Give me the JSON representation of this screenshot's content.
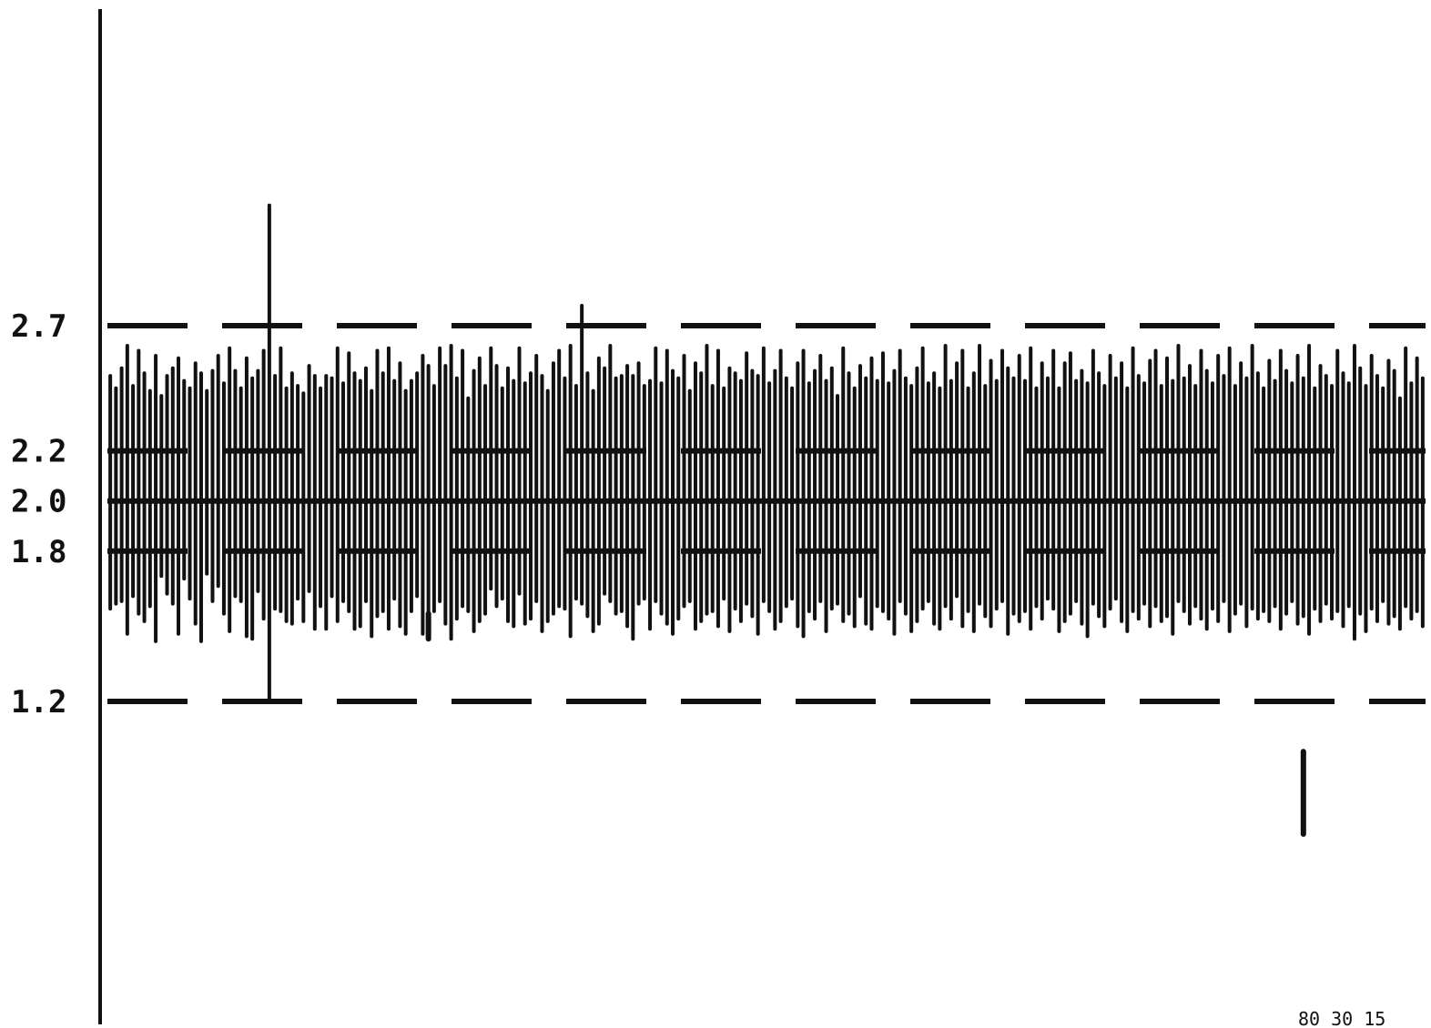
{
  "chart_data": {
    "type": "bar",
    "title": "",
    "xlabel": "",
    "ylabel": "",
    "ylim": [
      0.4,
      3.7
    ],
    "y_ticks": [
      {
        "value": 2.7,
        "label": "2.7"
      },
      {
        "value": 2.2,
        "label": "2.2"
      },
      {
        "value": 2.0,
        "label": "2.0"
      },
      {
        "value": 1.8,
        "label": "1.8"
      },
      {
        "value": 1.2,
        "label": "1.2"
      }
    ],
    "center_line": 2.0,
    "warning_limits": [
      1.8,
      2.2
    ],
    "control_limits": [
      1.2,
      2.7
    ],
    "bar_style": "vertical-range",
    "ink_color": "#111111",
    "ranges": [
      [
        1.57,
        2.5
      ],
      [
        1.59,
        2.45
      ],
      [
        1.6,
        2.53
      ],
      [
        1.47,
        2.62
      ],
      [
        1.62,
        2.46
      ],
      [
        1.55,
        2.6
      ],
      [
        1.52,
        2.51
      ],
      [
        1.58,
        2.44
      ],
      [
        1.44,
        2.58
      ],
      [
        1.7,
        2.42
      ],
      [
        1.63,
        2.5
      ],
      [
        1.59,
        2.53
      ],
      [
        1.47,
        2.57
      ],
      [
        1.69,
        2.48
      ],
      [
        1.61,
        2.45
      ],
      [
        1.51,
        2.55
      ],
      [
        1.44,
        2.51
      ],
      [
        1.71,
        2.44
      ],
      [
        1.6,
        2.52
      ],
      [
        1.66,
        2.58
      ],
      [
        1.55,
        2.47
      ],
      [
        1.48,
        2.61
      ],
      [
        1.62,
        2.52
      ],
      [
        1.6,
        2.45
      ],
      [
        1.46,
        2.57
      ],
      [
        1.45,
        2.49
      ],
      [
        1.64,
        2.52
      ],
      [
        1.53,
        2.6
      ],
      [
        1.2,
        3.18
      ],
      [
        1.57,
        2.5
      ],
      [
        1.56,
        2.61
      ],
      [
        1.52,
        2.45
      ],
      [
        1.51,
        2.51
      ],
      [
        1.61,
        2.46
      ],
      [
        1.52,
        2.43
      ],
      [
        1.64,
        2.54
      ],
      [
        1.49,
        2.5
      ],
      [
        1.58,
        2.45
      ],
      [
        1.49,
        2.5
      ],
      [
        1.62,
        2.49
      ],
      [
        1.52,
        2.61
      ],
      [
        1.6,
        2.47
      ],
      [
        1.56,
        2.59
      ],
      [
        1.49,
        2.51
      ],
      [
        1.5,
        2.48
      ],
      [
        1.6,
        2.53
      ],
      [
        1.46,
        2.44
      ],
      [
        1.54,
        2.6
      ],
      [
        1.56,
        2.51
      ],
      [
        1.49,
        2.61
      ],
      [
        1.61,
        2.48
      ],
      [
        1.5,
        2.55
      ],
      [
        1.47,
        2.44
      ],
      [
        1.56,
        2.48
      ],
      [
        1.62,
        2.51
      ],
      [
        1.47,
        2.58
      ],
      [
        1.49,
        2.54
      ],
      [
        1.56,
        2.46
      ],
      [
        1.6,
        2.61
      ],
      [
        1.51,
        2.54
      ],
      [
        1.45,
        2.62
      ],
      [
        1.53,
        2.49
      ],
      [
        1.58,
        2.6
      ],
      [
        1.56,
        2.41
      ],
      [
        1.48,
        2.52
      ],
      [
        1.52,
        2.57
      ],
      [
        1.55,
        2.46
      ],
      [
        1.65,
        2.61
      ],
      [
        1.58,
        2.54
      ],
      [
        1.61,
        2.45
      ],
      [
        1.52,
        2.53
      ],
      [
        1.5,
        2.48
      ],
      [
        1.63,
        2.61
      ],
      [
        1.51,
        2.47
      ],
      [
        1.53,
        2.51
      ],
      [
        1.6,
        2.58
      ],
      [
        1.48,
        2.5
      ],
      [
        1.52,
        2.44
      ],
      [
        1.55,
        2.55
      ],
      [
        1.58,
        2.6
      ],
      [
        1.57,
        2.49
      ],
      [
        1.46,
        2.62
      ],
      [
        1.61,
        2.46
      ],
      [
        1.59,
        2.78
      ],
      [
        1.54,
        2.51
      ],
      [
        1.48,
        2.44
      ],
      [
        1.51,
        2.57
      ],
      [
        1.63,
        2.53
      ],
      [
        1.6,
        2.62
      ],
      [
        1.55,
        2.49
      ],
      [
        1.56,
        2.5
      ],
      [
        1.5,
        2.54
      ],
      [
        1.45,
        2.5
      ],
      [
        1.59,
        2.55
      ],
      [
        1.61,
        2.46
      ],
      [
        1.49,
        2.48
      ],
      [
        1.6,
        2.61
      ],
      [
        1.55,
        2.47
      ],
      [
        1.51,
        2.6
      ],
      [
        1.47,
        2.52
      ],
      [
        1.53,
        2.49
      ],
      [
        1.58,
        2.58
      ],
      [
        1.6,
        2.44
      ],
      [
        1.49,
        2.55
      ],
      [
        1.52,
        2.51
      ],
      [
        1.55,
        2.62
      ],
      [
        1.56,
        2.46
      ],
      [
        1.5,
        2.6
      ],
      [
        1.61,
        2.45
      ],
      [
        1.48,
        2.53
      ],
      [
        1.57,
        2.51
      ],
      [
        1.52,
        2.48
      ],
      [
        1.59,
        2.59
      ],
      [
        1.54,
        2.52
      ],
      [
        1.47,
        2.5
      ],
      [
        1.6,
        2.61
      ],
      [
        1.56,
        2.47
      ],
      [
        1.49,
        2.52
      ],
      [
        1.52,
        2.6
      ],
      [
        1.58,
        2.49
      ],
      [
        1.61,
        2.45
      ],
      [
        1.5,
        2.55
      ],
      [
        1.46,
        2.6
      ],
      [
        1.56,
        2.47
      ],
      [
        1.53,
        2.52
      ],
      [
        1.6,
        2.58
      ],
      [
        1.48,
        2.48
      ],
      [
        1.57,
        2.53
      ],
      [
        1.59,
        2.42
      ],
      [
        1.52,
        2.61
      ],
      [
        1.55,
        2.51
      ],
      [
        1.5,
        2.45
      ],
      [
        1.62,
        2.54
      ],
      [
        1.51,
        2.49
      ],
      [
        1.49,
        2.57
      ],
      [
        1.58,
        2.48
      ],
      [
        1.56,
        2.59
      ],
      [
        1.53,
        2.47
      ],
      [
        1.47,
        2.52
      ],
      [
        1.6,
        2.6
      ],
      [
        1.55,
        2.49
      ],
      [
        1.48,
        2.46
      ],
      [
        1.52,
        2.53
      ],
      [
        1.57,
        2.61
      ],
      [
        1.6,
        2.47
      ],
      [
        1.51,
        2.51
      ],
      [
        1.49,
        2.45
      ],
      [
        1.58,
        2.62
      ],
      [
        1.53,
        2.48
      ],
      [
        1.62,
        2.55
      ],
      [
        1.5,
        2.6
      ],
      [
        1.56,
        2.45
      ],
      [
        1.48,
        2.51
      ],
      [
        1.59,
        2.62
      ],
      [
        1.54,
        2.46
      ],
      [
        1.5,
        2.56
      ],
      [
        1.57,
        2.48
      ],
      [
        1.6,
        2.6
      ],
      [
        1.47,
        2.53
      ],
      [
        1.55,
        2.49
      ],
      [
        1.52,
        2.58
      ],
      [
        1.56,
        2.48
      ],
      [
        1.49,
        2.61
      ],
      [
        1.58,
        2.45
      ],
      [
        1.53,
        2.55
      ],
      [
        1.61,
        2.49
      ],
      [
        1.57,
        2.6
      ],
      [
        1.48,
        2.45
      ],
      [
        1.52,
        2.55
      ],
      [
        1.55,
        2.59
      ],
      [
        1.6,
        2.48
      ],
      [
        1.51,
        2.52
      ],
      [
        1.46,
        2.47
      ],
      [
        1.59,
        2.6
      ],
      [
        1.54,
        2.51
      ],
      [
        1.5,
        2.46
      ],
      [
        1.57,
        2.58
      ],
      [
        1.61,
        2.49
      ],
      [
        1.52,
        2.55
      ],
      [
        1.48,
        2.45
      ],
      [
        1.56,
        2.61
      ],
      [
        1.53,
        2.5
      ],
      [
        1.59,
        2.47
      ],
      [
        1.5,
        2.56
      ],
      [
        1.58,
        2.6
      ],
      [
        1.52,
        2.46
      ],
      [
        1.54,
        2.57
      ],
      [
        1.47,
        2.48
      ],
      [
        1.6,
        2.62
      ],
      [
        1.56,
        2.49
      ],
      [
        1.51,
        2.54
      ],
      [
        1.58,
        2.46
      ],
      [
        1.53,
        2.6
      ],
      [
        1.49,
        2.52
      ],
      [
        1.57,
        2.47
      ],
      [
        1.52,
        2.58
      ],
      [
        1.6,
        2.5
      ],
      [
        1.48,
        2.61
      ],
      [
        1.55,
        2.46
      ],
      [
        1.59,
        2.55
      ],
      [
        1.5,
        2.49
      ],
      [
        1.57,
        2.62
      ],
      [
        1.53,
        2.51
      ],
      [
        1.56,
        2.45
      ],
      [
        1.52,
        2.56
      ],
      [
        1.58,
        2.48
      ],
      [
        1.49,
        2.6
      ],
      [
        1.55,
        2.52
      ],
      [
        1.6,
        2.47
      ],
      [
        1.51,
        2.58
      ],
      [
        1.54,
        2.49
      ],
      [
        1.47,
        2.62
      ],
      [
        1.57,
        2.45
      ],
      [
        1.52,
        2.54
      ],
      [
        1.59,
        2.5
      ],
      [
        1.53,
        2.46
      ],
      [
        1.56,
        2.6
      ],
      [
        1.5,
        2.51
      ],
      [
        1.58,
        2.47
      ],
      [
        1.45,
        2.62
      ],
      [
        1.55,
        2.53
      ],
      [
        1.48,
        2.46
      ],
      [
        1.57,
        2.58
      ],
      [
        1.52,
        2.5
      ],
      [
        1.6,
        2.45
      ],
      [
        1.51,
        2.56
      ],
      [
        1.54,
        2.52
      ],
      [
        1.49,
        2.41
      ],
      [
        1.58,
        2.61
      ],
      [
        1.53,
        2.47
      ],
      [
        1.56,
        2.57
      ],
      [
        1.5,
        2.49
      ]
    ],
    "extra_marks": [
      {
        "x_index": 56,
        "low": 1.45,
        "high": 1.55
      },
      {
        "x_index": 210,
        "low": 0.67,
        "high": 1.0
      }
    ]
  },
  "figure_id": "80 30 15"
}
